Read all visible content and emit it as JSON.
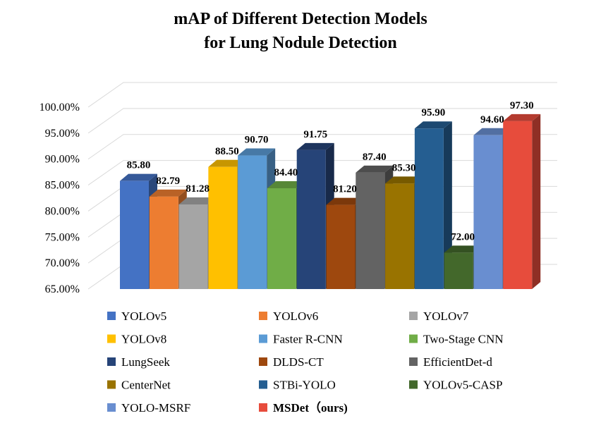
{
  "chart_data": {
    "type": "bar",
    "title_lines": [
      "mAP of Different Detection Models",
      "for Lung Nodule Detection"
    ],
    "ylim": [
      65,
      100
    ],
    "yticks": [
      65,
      70,
      75,
      80,
      85,
      90,
      95,
      100
    ],
    "ytick_labels": [
      "65.00%",
      "70.00%",
      "75.00%",
      "80.00%",
      "85.00%",
      "90.00%",
      "95.00%",
      "100.00%"
    ],
    "grid": true,
    "legend_position": "bottom",
    "categories": [
      "YOLOv5",
      "YOLOv6",
      "YOLOv7",
      "YOLOv8",
      "Faster R-CNN",
      "Two-Stage CNN",
      "LungSeek",
      "DLDS-CT",
      "EfficientDet-d",
      "CenterNet",
      "STBi-YOLO",
      "YOLOv5-CASP",
      "YOLO-MSRF",
      "MSDet（ours)"
    ],
    "values": [
      85.8,
      82.79,
      81.28,
      88.5,
      90.7,
      84.4,
      91.75,
      81.2,
      87.4,
      85.3,
      95.9,
      72.0,
      94.6,
      97.3
    ],
    "value_labels": [
      "85.80",
      "82.79",
      "81.28",
      "88.50",
      "90.70",
      "84.40",
      "91.75",
      "81.20",
      "87.40",
      "85.30",
      "95.90",
      "72.00",
      "94.60",
      "97.30"
    ],
    "colors": [
      "#4472C4",
      "#ED7D31",
      "#A5A5A5",
      "#FFC000",
      "#5B9BD5",
      "#70AD47",
      "#264478",
      "#9E480E",
      "#636363",
      "#997300",
      "#255E91",
      "#43682B",
      "#698ED0",
      "#E74C3C"
    ],
    "highlight": {
      "index": 13,
      "label_color": "#FF0000"
    }
  }
}
